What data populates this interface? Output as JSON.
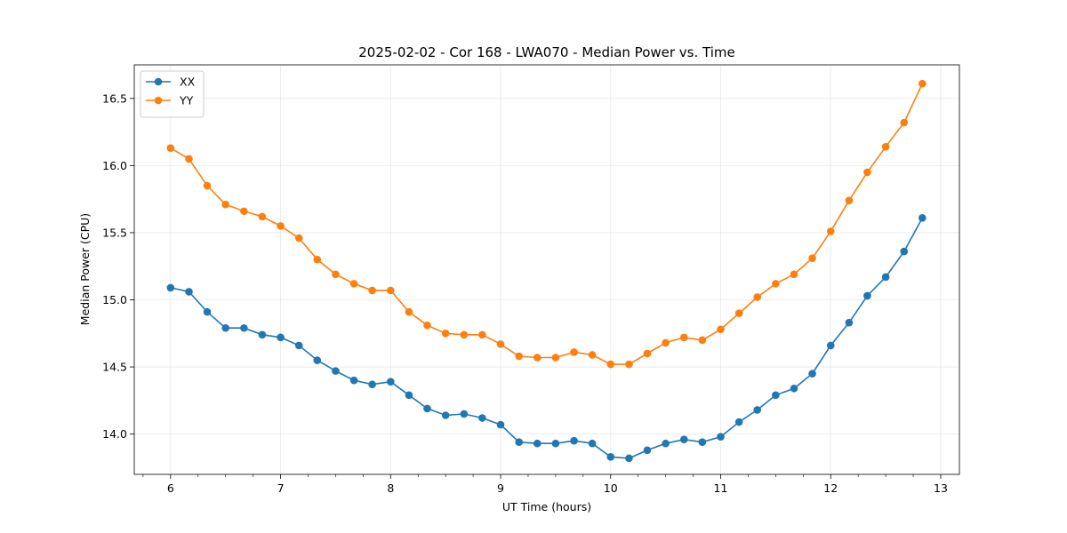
{
  "chart_data": {
    "type": "line",
    "title": "2025-02-02 - Cor 168 - LWA070 - Median Power vs. Time",
    "xlabel": "UT Time (hours)",
    "ylabel": "Median Power (CPU)",
    "xlim": [
      5.67,
      13.17
    ],
    "ylim": [
      13.7,
      16.75
    ],
    "xticks": [
      6,
      7,
      8,
      9,
      10,
      11,
      12,
      13
    ],
    "xtick_labels": [
      "6",
      "7",
      "8",
      "9",
      "10",
      "11",
      "12",
      "13"
    ],
    "yticks": [
      14.0,
      14.5,
      15.0,
      15.5,
      16.0,
      16.5
    ],
    "ytick_labels": [
      "14.0",
      "14.5",
      "15.0",
      "15.5",
      "16.0",
      "16.5"
    ],
    "grid": true,
    "legend_position": "top-left",
    "x": [
      6.0,
      6.167,
      6.333,
      6.5,
      6.667,
      6.833,
      7.0,
      7.167,
      7.333,
      7.5,
      7.667,
      7.833,
      8.0,
      8.167,
      8.333,
      8.5,
      8.667,
      8.833,
      9.0,
      9.167,
      9.333,
      9.5,
      9.667,
      9.833,
      10.0,
      10.167,
      10.333,
      10.5,
      10.667,
      10.833,
      11.0,
      11.167,
      11.333,
      11.5,
      11.667,
      11.833,
      12.0,
      12.167,
      12.333,
      12.5,
      12.667,
      12.833
    ],
    "series": [
      {
        "name": "XX",
        "color": "#1f77b4",
        "values": [
          15.09,
          15.06,
          14.91,
          14.79,
          14.79,
          14.74,
          14.72,
          14.66,
          14.55,
          14.47,
          14.4,
          14.37,
          14.39,
          14.29,
          14.19,
          14.14,
          14.15,
          14.12,
          14.07,
          13.94,
          13.93,
          13.93,
          13.95,
          13.93,
          13.83,
          13.82,
          13.88,
          13.93,
          13.96,
          13.94,
          13.98,
          14.09,
          14.18,
          14.29,
          14.34,
          14.45,
          14.66,
          14.83,
          15.03,
          15.17,
          15.36,
          15.61
        ]
      },
      {
        "name": "YY",
        "color": "#ff7f0e",
        "values": [
          16.13,
          16.05,
          15.85,
          15.71,
          15.66,
          15.62,
          15.55,
          15.46,
          15.3,
          15.19,
          15.12,
          15.07,
          15.07,
          14.91,
          14.81,
          14.75,
          14.74,
          14.74,
          14.67,
          14.58,
          14.57,
          14.57,
          14.61,
          14.59,
          14.52,
          14.52,
          14.6,
          14.68,
          14.72,
          14.7,
          14.78,
          14.9,
          15.02,
          15.12,
          15.19,
          15.31,
          15.51,
          15.74,
          15.95,
          16.14,
          16.32,
          16.61
        ]
      }
    ]
  }
}
